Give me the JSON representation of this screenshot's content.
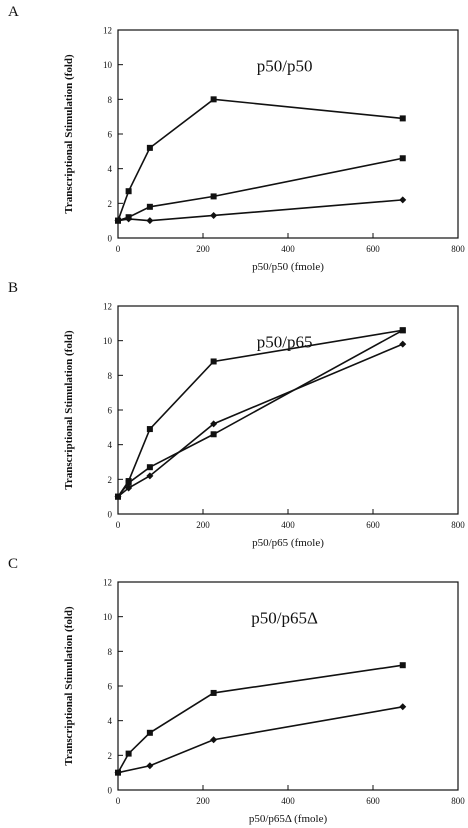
{
  "chart_data": [
    {
      "panel": "A",
      "type": "line",
      "inset_title": "p50/p50",
      "xlabel": "p50/p50 (fmole)",
      "ylabel": "Transcriptional Stimulation (fold)",
      "xlim": [
        0,
        800
      ],
      "ylim": [
        0,
        12
      ],
      "xticks": [
        0,
        200,
        400,
        600,
        800
      ],
      "yticks": [
        0,
        2,
        4,
        6,
        8,
        10,
        12
      ],
      "grid": false,
      "series": [
        {
          "marker": "square",
          "x": [
            0,
            25,
            75,
            225,
            670
          ],
          "y": [
            1.0,
            2.7,
            5.2,
            8.0,
            6.9
          ]
        },
        {
          "marker": "square",
          "x": [
            0,
            25,
            75,
            225,
            670
          ],
          "y": [
            1.0,
            1.2,
            1.8,
            2.4,
            4.6
          ]
        },
        {
          "marker": "diamond",
          "x": [
            0,
            25,
            75,
            225,
            670
          ],
          "y": [
            1.0,
            1.1,
            1.0,
            1.3,
            2.2
          ]
        }
      ]
    },
    {
      "panel": "B",
      "type": "line",
      "inset_title": "p50/p65",
      "xlabel": "p50/p65 (fmole)",
      "ylabel": "Transcriptional Stimulation (fold)",
      "xlim": [
        0,
        800
      ],
      "ylim": [
        0,
        12
      ],
      "xticks": [
        0,
        200,
        400,
        600,
        800
      ],
      "yticks": [
        0,
        2,
        4,
        6,
        8,
        10,
        12
      ],
      "grid": false,
      "series": [
        {
          "marker": "square",
          "x": [
            0,
            25,
            75,
            225,
            670
          ],
          "y": [
            1.0,
            1.9,
            4.9,
            8.8,
            10.6
          ]
        },
        {
          "marker": "square",
          "x": [
            0,
            25,
            75,
            225,
            670
          ],
          "y": [
            1.0,
            1.8,
            2.7,
            4.6,
            10.6
          ]
        },
        {
          "marker": "diamond",
          "x": [
            0,
            25,
            75,
            225,
            670
          ],
          "y": [
            1.0,
            1.5,
            2.2,
            5.2,
            9.8
          ]
        }
      ]
    },
    {
      "panel": "C",
      "type": "line",
      "inset_title": "p50/p65Δ",
      "xlabel": "p50/p65Δ (fmole)",
      "ylabel": "Transcriptional Stimulation (fold)",
      "xlim": [
        0,
        800
      ],
      "ylim": [
        0,
        12
      ],
      "xticks": [
        0,
        200,
        400,
        600,
        800
      ],
      "yticks": [
        0,
        2,
        4,
        6,
        8,
        10,
        12
      ],
      "grid": false,
      "series": [
        {
          "marker": "square",
          "x": [
            0,
            25,
            75,
            225,
            670
          ],
          "y": [
            1.0,
            2.1,
            3.3,
            5.6,
            7.2
          ]
        },
        {
          "marker": "diamond",
          "x": [
            0,
            75,
            225,
            670
          ],
          "y": [
            1.0,
            1.4,
            2.9,
            4.8
          ]
        }
      ]
    }
  ]
}
